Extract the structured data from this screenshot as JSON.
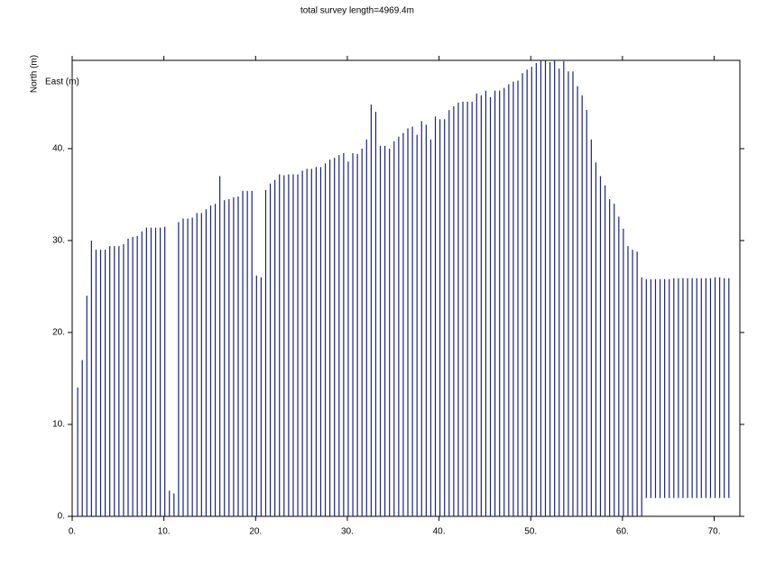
{
  "chart_data": {
    "type": "range",
    "title": "total survey length=4969.4m",
    "y_label": "North (m)",
    "annotation": "East (m)",
    "color": "#1a237e",
    "xlim": [
      0,
      72.8
    ],
    "ylim": [
      0,
      49.6
    ],
    "xticks": [
      {
        "value": 0,
        "label": "0."
      },
      {
        "value": 10,
        "label": "10."
      },
      {
        "value": 20,
        "label": "20."
      },
      {
        "value": 30,
        "label": "30."
      },
      {
        "value": 40,
        "label": "40."
      },
      {
        "value": 50,
        "label": "50."
      },
      {
        "value": 60,
        "label": "60."
      },
      {
        "value": 70,
        "label": "70."
      }
    ],
    "yticks": [
      {
        "value": 0,
        "label": "0."
      },
      {
        "value": 10,
        "label": "10."
      },
      {
        "value": 20,
        "label": "20."
      },
      {
        "value": 30,
        "label": "30."
      },
      {
        "value": 40,
        "label": "40."
      }
    ],
    "x": [
      0.6,
      1.1,
      1.6,
      2.1,
      2.6,
      3.1,
      3.6,
      4.1,
      4.6,
      5.1,
      5.6,
      6.1,
      6.6,
      7.1,
      7.6,
      8.1,
      8.6,
      9.1,
      9.6,
      10.1,
      10.6,
      11.1,
      11.6,
      12.1,
      12.6,
      13.1,
      13.6,
      14.1,
      14.6,
      15.1,
      15.6,
      16.1,
      16.6,
      17.1,
      17.6,
      18.1,
      18.6,
      19.1,
      19.6,
      20.1,
      20.6,
      21.1,
      21.6,
      22.1,
      22.6,
      23.1,
      23.6,
      24.1,
      24.6,
      25.1,
      25.6,
      26.1,
      26.6,
      27.1,
      27.6,
      28.1,
      28.6,
      29.1,
      29.6,
      30.1,
      30.6,
      31.1,
      31.6,
      32.1,
      32.6,
      33.1,
      33.6,
      34.1,
      34.6,
      35.1,
      35.6,
      36.1,
      36.6,
      37.1,
      37.6,
      38.1,
      38.6,
      39.1,
      39.6,
      40.1,
      40.6,
      41.1,
      41.6,
      42.1,
      42.6,
      43.1,
      43.6,
      44.1,
      44.6,
      45.1,
      45.6,
      46.1,
      46.6,
      47.1,
      47.6,
      48.1,
      48.6,
      49.1,
      49.6,
      50.1,
      50.6,
      51.1,
      51.6,
      52.1,
      52.6,
      53.1,
      53.6,
      54.1,
      54.6,
      55.1,
      55.6,
      56.1,
      56.6,
      57.1,
      57.6,
      58.1,
      58.6,
      59.1,
      59.6,
      60.1,
      60.6,
      61.1,
      61.6,
      62.1,
      62.6,
      63.1,
      63.6,
      64.1,
      64.6,
      65.1,
      65.6,
      66.1,
      66.6,
      67.1,
      67.6,
      68.1,
      68.6,
      69.1,
      69.6,
      70.1,
      70.6,
      71.1,
      71.6
    ],
    "low": [
      0,
      0,
      0,
      0,
      0,
      0,
      0,
      0,
      0,
      0,
      0,
      0,
      0,
      0,
      0,
      0,
      0,
      0,
      0,
      0,
      0,
      0,
      0,
      0,
      0,
      0,
      0,
      0,
      0,
      0,
      0,
      0,
      0,
      0,
      0,
      0,
      0,
      0,
      0,
      0,
      0,
      0,
      0,
      0,
      0,
      0,
      0,
      0,
      0,
      0,
      0,
      0,
      0,
      0,
      0,
      0,
      0,
      0,
      0,
      0,
      0,
      0,
      0,
      0,
      0,
      0,
      0,
      0,
      0,
      0,
      0,
      0,
      0,
      0,
      0,
      0,
      0,
      0,
      0,
      0,
      0,
      0,
      0,
      0,
      0,
      0,
      0,
      0,
      0,
      0,
      0,
      0,
      0,
      0,
      0,
      0,
      0,
      0,
      0,
      0,
      0,
      0,
      0,
      0,
      0,
      0,
      0,
      0,
      0,
      0,
      0,
      0,
      0,
      0,
      0,
      0,
      0,
      0,
      0,
      0,
      0,
      0,
      0,
      0,
      2,
      2,
      2,
      2,
      2,
      2,
      2,
      2,
      2,
      2,
      2,
      2,
      2,
      2,
      2,
      2,
      2,
      2,
      2
    ],
    "high": [
      14,
      17,
      24,
      30,
      29,
      29,
      29,
      29.4,
      29.4,
      29.4,
      29.6,
      30.2,
      30.4,
      30.5,
      31,
      31.4,
      31.4,
      31.4,
      31.4,
      31.5,
      2.8,
      2.5,
      32,
      32.4,
      32.4,
      32.5,
      33,
      33,
      33.4,
      33.8,
      34,
      37,
      34.4,
      34.5,
      34.7,
      34.8,
      35.4,
      35.4,
      35.4,
      26.2,
      26,
      35.5,
      36.2,
      36.6,
      37.2,
      37.1,
      37.2,
      37.2,
      37.2,
      37.6,
      37.8,
      37.8,
      38,
      38,
      38.4,
      38.8,
      39,
      39.3,
      39.5,
      38.6,
      39.5,
      39.4,
      40,
      41,
      44.8,
      44,
      40.3,
      40.3,
      40,
      40.8,
      41.3,
      41.7,
      42.2,
      42.4,
      41.5,
      43,
      42.6,
      41,
      43.5,
      43.2,
      43.2,
      44.2,
      44.6,
      45,
      45.1,
      45.1,
      45.1,
      46,
      45.8,
      46.3,
      45.6,
      46.3,
      46.3,
      46.6,
      47,
      47.3,
      47.4,
      48.2,
      48.6,
      48.9,
      49.3,
      49.6,
      49.6,
      49.4,
      49.6,
      48.7,
      49.5,
      48.4,
      48.4,
      46.8,
      45.8,
      44.2,
      41,
      38.5,
      37,
      36,
      34.5,
      34,
      32.6,
      31.3,
      29.4,
      29,
      28.8,
      26,
      25.8,
      25.8,
      25.8,
      25.8,
      25.8,
      25.8,
      25.9,
      25.9,
      25.9,
      25.9,
      25.9,
      25.9,
      25.9,
      25.9,
      25.9,
      26,
      26,
      25.9,
      25.9
    ]
  }
}
